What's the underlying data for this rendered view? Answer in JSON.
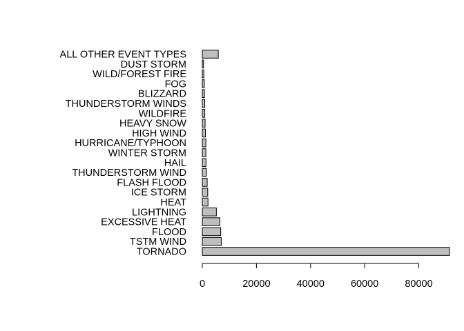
{
  "chart_data": {
    "type": "bar",
    "orientation": "horizontal",
    "title": "",
    "xlabel": "",
    "ylabel": "",
    "categories": [
      "TORNADO",
      "TSTM WIND",
      "FLOOD",
      "EXCESSIVE HEAT",
      "LIGHTNING",
      "HEAT",
      "ICE STORM",
      "FLASH FLOOD",
      "THUNDERSTORM WIND",
      "HAIL",
      "WINTER STORM",
      "HURRICANE/TYPHOON",
      "HIGH WIND",
      "HEAVY SNOW",
      "WILDFIRE",
      "THUNDERSTORM WINDS",
      "BLIZZARD",
      "FOG",
      "WILD/FOREST FIRE",
      "DUST STORM",
      "ALL OTHER EVENT TYPES"
    ],
    "values": [
      91346,
      7000,
      6800,
      6500,
      5200,
      2100,
      2000,
      1800,
      1500,
      1360,
      1320,
      1300,
      1140,
      1030,
      910,
      900,
      810,
      740,
      550,
      440,
      5900
    ],
    "xlim": [
      0,
      91346
    ],
    "xticks": [
      "0",
      "20000",
      "40000",
      "60000",
      "80000"
    ],
    "grid": false,
    "legend": "none",
    "colors": {
      "bar_fill": "#bebebe",
      "bar_stroke": "#000000",
      "axis": "#000000",
      "text": "#000000",
      "background": "#ffffff"
    }
  }
}
